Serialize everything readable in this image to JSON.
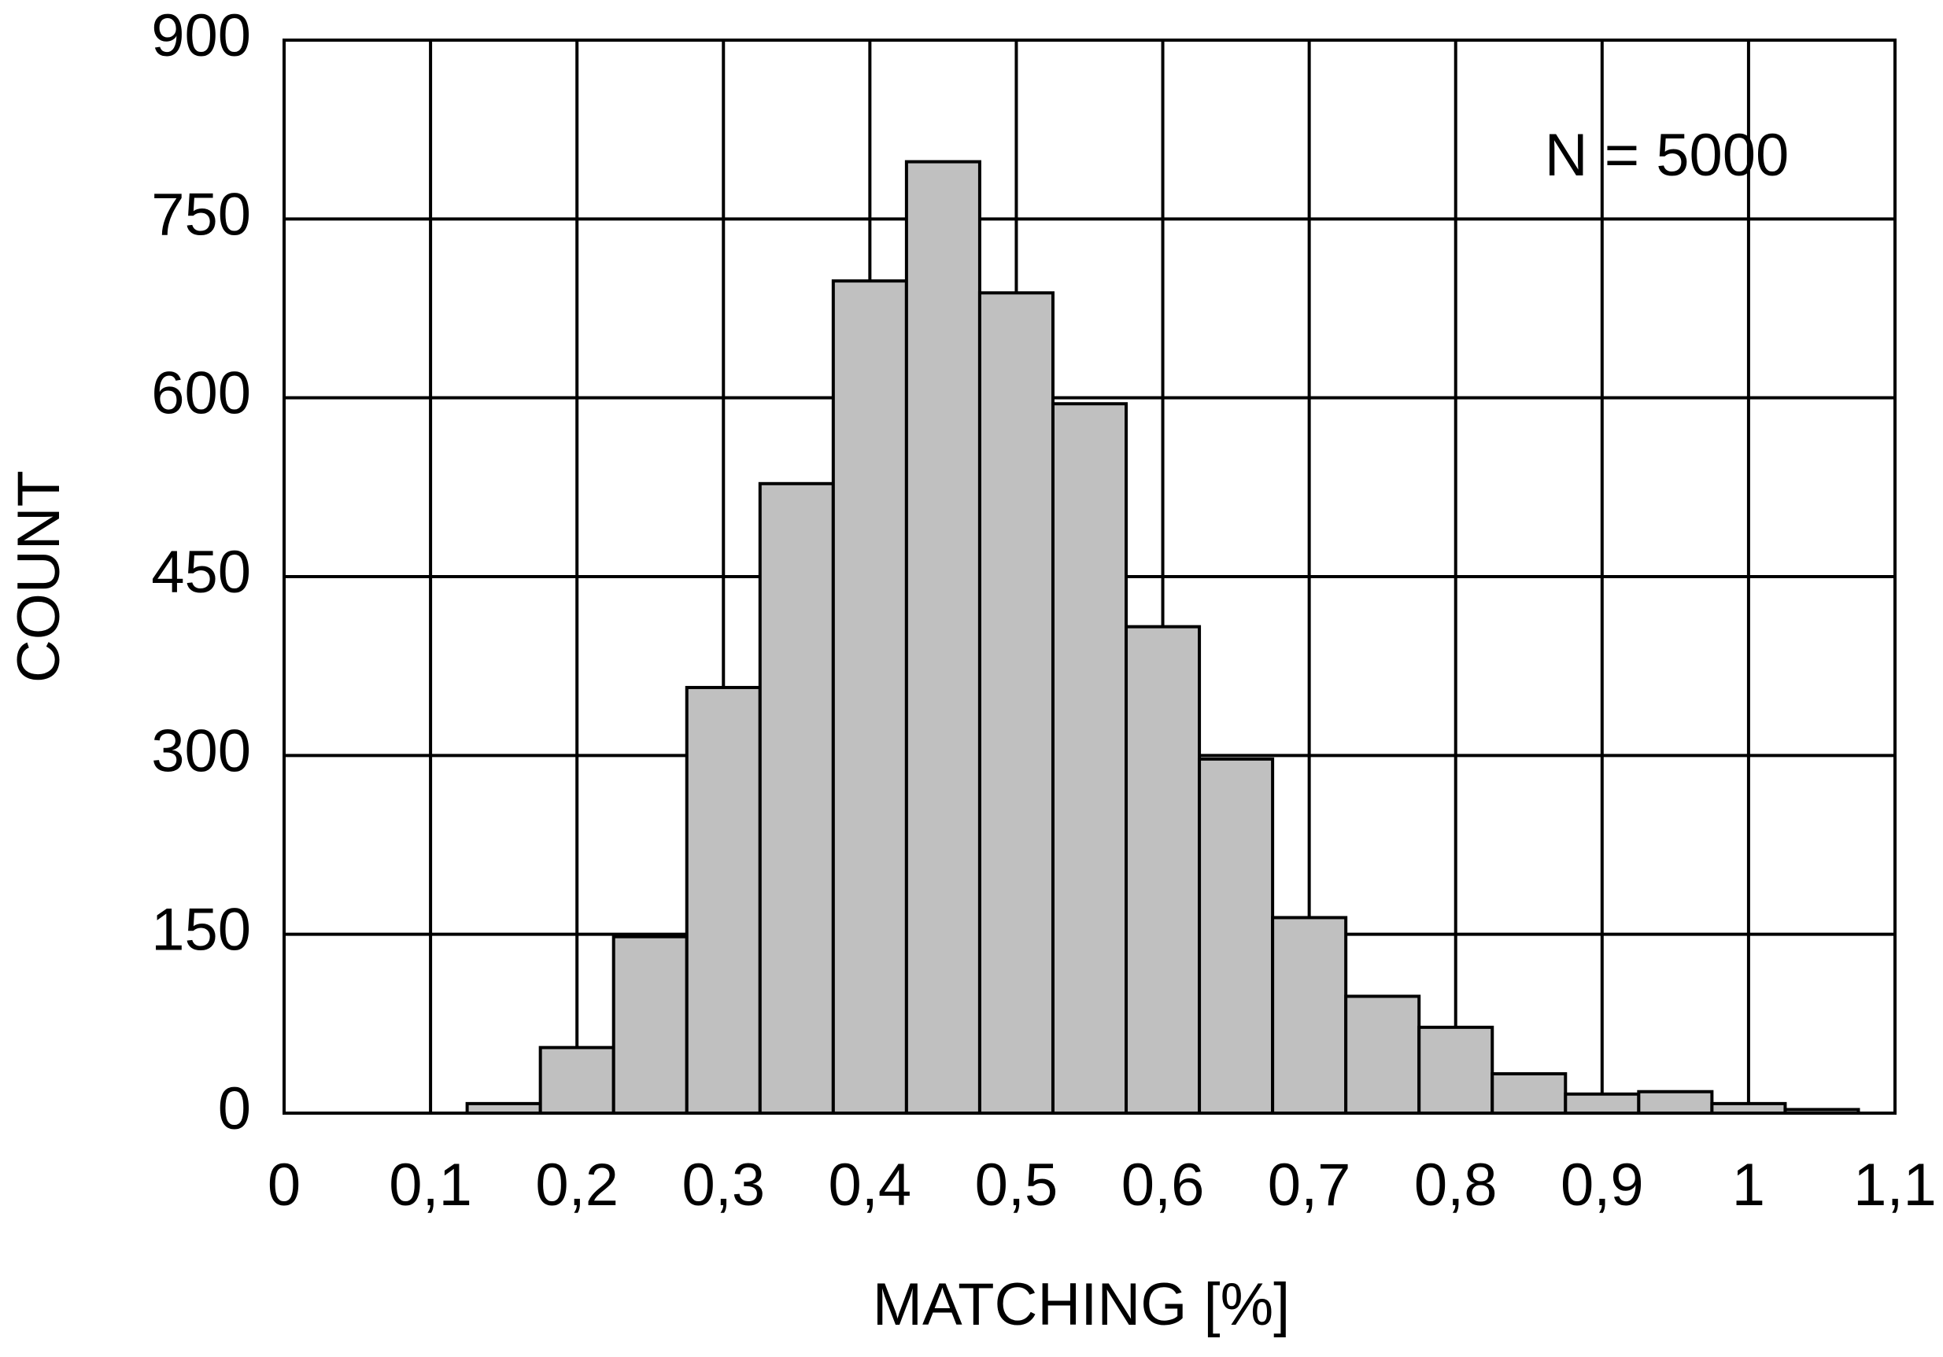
{
  "chart_data": {
    "type": "histogram",
    "x_label": "MATCHING [%]",
    "y_label": "COUNT",
    "annotation": "N = 5000",
    "bins": [
      0.125,
      0.175,
      0.225,
      0.275,
      0.325,
      0.375,
      0.425,
      0.475,
      0.525,
      0.575,
      0.625,
      0.675,
      0.725,
      0.775,
      0.825,
      0.875,
      0.925,
      0.975,
      1.025,
      1.075
    ],
    "values": [
      8,
      55,
      148,
      357,
      528,
      698,
      798,
      688,
      595,
      408,
      297,
      164,
      98,
      72,
      33,
      16,
      18,
      8,
      3
    ],
    "color": "#c0c0c0",
    "xlim": [
      0,
      1.1
    ],
    "xticks": [
      0,
      {
        "value": 0.1,
        "label": "0,1"
      },
      {
        "value": 0.2,
        "label": "0,2"
      },
      {
        "value": 0.3,
        "label": "0,3"
      },
      {
        "value": 0.4,
        "label": "0,4"
      },
      {
        "value": 0.5,
        "label": "0,5"
      },
      {
        "value": 0.6,
        "label": "0,6"
      },
      {
        "value": 0.7,
        "label": "0,7"
      },
      {
        "value": 0.8,
        "label": "0,8"
      },
      {
        "value": 0.9,
        "label": "0,9"
      },
      1,
      {
        "value": 1.1,
        "label": "1,1"
      }
    ],
    "ylim": [
      0,
      900
    ],
    "yticks": [
      0,
      150,
      300,
      450,
      600,
      750,
      900
    ],
    "grid": true
  }
}
